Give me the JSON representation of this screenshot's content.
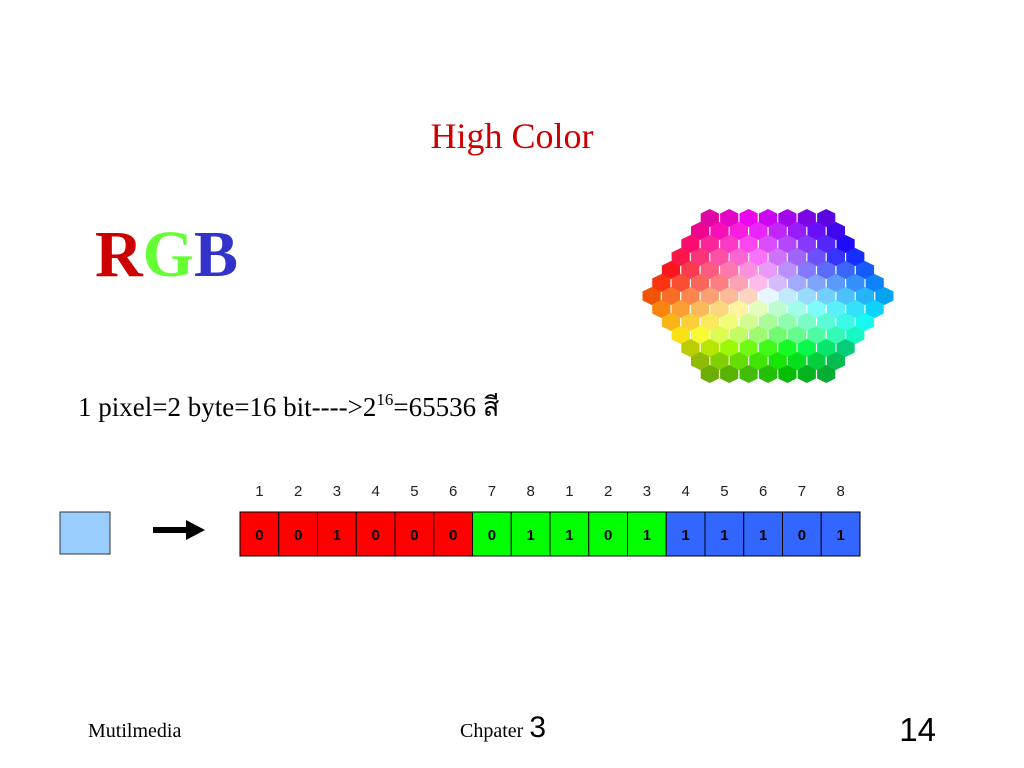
{
  "title": "High Color",
  "rgb": [
    {
      "text": "R",
      "color": "#cc0000"
    },
    {
      "text": "G",
      "color": "#66ff33"
    },
    {
      "text": "B",
      "color": "#3333cc"
    }
  ],
  "formula": {
    "base": "1 pixel=2 byte=16 bit---->2",
    "exponent": "16",
    "result": "=65536 สี"
  },
  "bits": {
    "positions": [
      "1",
      "2",
      "3",
      "4",
      "5",
      "6",
      "7",
      "8",
      "1",
      "2",
      "3",
      "4",
      "5",
      "6",
      "7",
      "8"
    ],
    "groups": [
      {
        "color": "#ff0000",
        "values": [
          "0",
          "0",
          "1",
          "0",
          "0",
          "0"
        ]
      },
      {
        "color": "#00ff00",
        "values": [
          "0",
          "1",
          "1",
          "0",
          "1"
        ]
      },
      {
        "color": "#3366ff",
        "values": [
          "1",
          "1",
          "1",
          "0",
          "1"
        ]
      }
    ]
  },
  "footer": {
    "left": "Mutilmedia",
    "center": "Chpater",
    "chapter": "3",
    "page": "14"
  }
}
